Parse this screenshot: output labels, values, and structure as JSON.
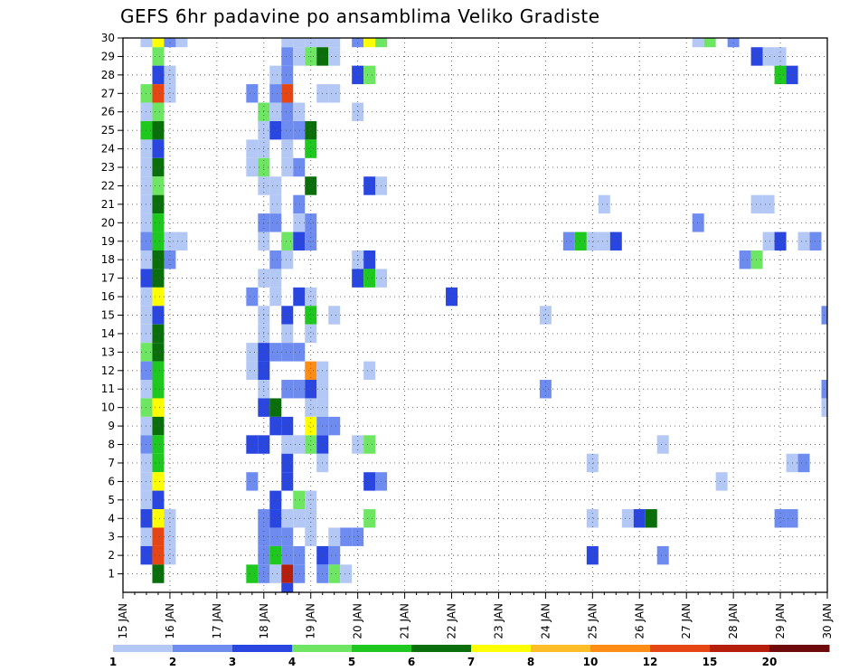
{
  "chart_data": {
    "type": "heatmap",
    "title": "GEFS 6hr padavine po ansamblima Veliko Gradiste",
    "xlabel": "",
    "ylabel": "",
    "x_ticks": [
      "15 JAN",
      "16 JAN",
      "17 JAN",
      "18 JAN",
      "19 JAN",
      "20 JAN",
      "21 JAN",
      "22 JAN",
      "23 JAN",
      "24 JAN",
      "25 JAN",
      "26 JAN",
      "27 JAN",
      "28 JAN",
      "29 JAN",
      "30 JAN"
    ],
    "y_ticks": [
      1,
      2,
      3,
      4,
      5,
      6,
      7,
      8,
      9,
      10,
      11,
      12,
      13,
      14,
      15,
      16,
      17,
      18,
      19,
      20,
      21,
      22,
      23,
      24,
      25,
      26,
      27,
      28,
      29,
      30
    ],
    "x_range": [
      0,
      60
    ],
    "y_range": [
      0,
      30
    ],
    "grid": true,
    "grid_style": "dotted",
    "legend_placement": "bottom",
    "legend": {
      "labels": [
        "1",
        "2",
        "3",
        "4",
        "5",
        "6",
        "7",
        "8",
        "10",
        "12",
        "15",
        "20"
      ],
      "colors": [
        "#b4c8f5",
        "#6e8cf0",
        "#2a46e0",
        "#6ee664",
        "#1ec81e",
        "#0a6e0a",
        "#ffff00",
        "#ffbe28",
        "#ff8c14",
        "#e64614",
        "#b41e0a",
        "#6e0a0a"
      ]
    },
    "cells_note": "each cell: [ensemble_member, 6h_step_index_from_15JAN00Z, level_index]; level_index i -> legend.colors[i]",
    "cells": [
      [
        30,
        2,
        0
      ],
      [
        30,
        3,
        6
      ],
      [
        30,
        4,
        1
      ],
      [
        30,
        5,
        0
      ],
      [
        30,
        14,
        0
      ],
      [
        30,
        15,
        0
      ],
      [
        30,
        16,
        0
      ],
      [
        30,
        17,
        0
      ],
      [
        30,
        18,
        0
      ],
      [
        30,
        20,
        1
      ],
      [
        30,
        21,
        6
      ],
      [
        30,
        22,
        3
      ],
      [
        30,
        49,
        0
      ],
      [
        30,
        50,
        3
      ],
      [
        30,
        52,
        1
      ],
      [
        29,
        3,
        3
      ],
      [
        29,
        14,
        1
      ],
      [
        29,
        15,
        0
      ],
      [
        29,
        16,
        3
      ],
      [
        29,
        17,
        5
      ],
      [
        29,
        18,
        0
      ],
      [
        29,
        54,
        2
      ],
      [
        29,
        55,
        0
      ],
      [
        29,
        56,
        0
      ],
      [
        28,
        3,
        2
      ],
      [
        28,
        4,
        0
      ],
      [
        28,
        13,
        0
      ],
      [
        28,
        14,
        1
      ],
      [
        28,
        20,
        2
      ],
      [
        28,
        21,
        3
      ],
      [
        28,
        56,
        4
      ],
      [
        28,
        57,
        2
      ],
      [
        27,
        2,
        3
      ],
      [
        27,
        3,
        9
      ],
      [
        27,
        4,
        0
      ],
      [
        27,
        11,
        1
      ],
      [
        27,
        13,
        1
      ],
      [
        27,
        14,
        9
      ],
      [
        27,
        17,
        0
      ],
      [
        27,
        18,
        0
      ],
      [
        26,
        2,
        0
      ],
      [
        26,
        3,
        3
      ],
      [
        26,
        12,
        3
      ],
      [
        26,
        13,
        0
      ],
      [
        26,
        14,
        1
      ],
      [
        26,
        15,
        0
      ],
      [
        26,
        20,
        0
      ],
      [
        25,
        2,
        4
      ],
      [
        25,
        3,
        5
      ],
      [
        25,
        12,
        0
      ],
      [
        25,
        13,
        2
      ],
      [
        25,
        14,
        1
      ],
      [
        25,
        15,
        1
      ],
      [
        25,
        16,
        5
      ],
      [
        24,
        2,
        0
      ],
      [
        24,
        3,
        2
      ],
      [
        24,
        11,
        0
      ],
      [
        24,
        12,
        0
      ],
      [
        24,
        14,
        0
      ],
      [
        24,
        16,
        4
      ],
      [
        23,
        2,
        0
      ],
      [
        23,
        3,
        5
      ],
      [
        23,
        11,
        0
      ],
      [
        23,
        12,
        3
      ],
      [
        23,
        14,
        0
      ],
      [
        23,
        15,
        1
      ],
      [
        22,
        2,
        0
      ],
      [
        22,
        3,
        3
      ],
      [
        22,
        12,
        0
      ],
      [
        22,
        13,
        0
      ],
      [
        22,
        16,
        5
      ],
      [
        22,
        21,
        2
      ],
      [
        22,
        22,
        0
      ],
      [
        21,
        2,
        0
      ],
      [
        21,
        3,
        5
      ],
      [
        21,
        13,
        0
      ],
      [
        21,
        15,
        1
      ],
      [
        21,
        41,
        0
      ],
      [
        21,
        54,
        0
      ],
      [
        21,
        55,
        0
      ],
      [
        20,
        2,
        0
      ],
      [
        20,
        3,
        4
      ],
      [
        20,
        12,
        1
      ],
      [
        20,
        13,
        1
      ],
      [
        20,
        15,
        0
      ],
      [
        20,
        16,
        1
      ],
      [
        20,
        49,
        1
      ],
      [
        19,
        2,
        1
      ],
      [
        19,
        3,
        4
      ],
      [
        19,
        4,
        0
      ],
      [
        19,
        5,
        0
      ],
      [
        19,
        12,
        0
      ],
      [
        19,
        14,
        3
      ],
      [
        19,
        15,
        2
      ],
      [
        19,
        16,
        1
      ],
      [
        19,
        38,
        1
      ],
      [
        19,
        39,
        4
      ],
      [
        19,
        40,
        0
      ],
      [
        19,
        41,
        0
      ],
      [
        19,
        42,
        2
      ],
      [
        19,
        55,
        0
      ],
      [
        19,
        56,
        2
      ],
      [
        19,
        58,
        0
      ],
      [
        19,
        59,
        1
      ],
      [
        18,
        2,
        0
      ],
      [
        18,
        3,
        5
      ],
      [
        18,
        4,
        1
      ],
      [
        18,
        13,
        1
      ],
      [
        18,
        14,
        0
      ],
      [
        18,
        20,
        0
      ],
      [
        18,
        21,
        2
      ],
      [
        18,
        53,
        1
      ],
      [
        18,
        54,
        3
      ],
      [
        17,
        2,
        2
      ],
      [
        17,
        3,
        5
      ],
      [
        17,
        12,
        0
      ],
      [
        17,
        13,
        0
      ],
      [
        17,
        20,
        2
      ],
      [
        17,
        21,
        4
      ],
      [
        17,
        22,
        0
      ],
      [
        16,
        2,
        0
      ],
      [
        16,
        3,
        6
      ],
      [
        16,
        11,
        1
      ],
      [
        16,
        13,
        0
      ],
      [
        16,
        15,
        2
      ],
      [
        16,
        16,
        0
      ],
      [
        16,
        28,
        2
      ],
      [
        15,
        2,
        0
      ],
      [
        15,
        3,
        2
      ],
      [
        15,
        12,
        0
      ],
      [
        15,
        14,
        2
      ],
      [
        15,
        16,
        4
      ],
      [
        15,
        18,
        0
      ],
      [
        15,
        36,
        0
      ],
      [
        15,
        60,
        1
      ],
      [
        14,
        2,
        0
      ],
      [
        14,
        3,
        5
      ],
      [
        14,
        12,
        0
      ],
      [
        14,
        14,
        0
      ],
      [
        14,
        16,
        0
      ],
      [
        13,
        2,
        3
      ],
      [
        13,
        3,
        5
      ],
      [
        13,
        11,
        0
      ],
      [
        13,
        12,
        2
      ],
      [
        13,
        13,
        1
      ],
      [
        13,
        14,
        1
      ],
      [
        13,
        15,
        1
      ],
      [
        12,
        2,
        1
      ],
      [
        12,
        3,
        4
      ],
      [
        12,
        11,
        0
      ],
      [
        12,
        12,
        2
      ],
      [
        12,
        16,
        8
      ],
      [
        12,
        17,
        0
      ],
      [
        12,
        21,
        0
      ],
      [
        11,
        2,
        0
      ],
      [
        11,
        3,
        4
      ],
      [
        11,
        12,
        0
      ],
      [
        11,
        14,
        1
      ],
      [
        11,
        15,
        1
      ],
      [
        11,
        16,
        2
      ],
      [
        11,
        17,
        0
      ],
      [
        11,
        36,
        1
      ],
      [
        11,
        60,
        1
      ],
      [
        10,
        2,
        3
      ],
      [
        10,
        3,
        6
      ],
      [
        10,
        12,
        2
      ],
      [
        10,
        13,
        5
      ],
      [
        10,
        16,
        0
      ],
      [
        10,
        17,
        0
      ],
      [
        10,
        60,
        0
      ],
      [
        9,
        2,
        0
      ],
      [
        9,
        3,
        5
      ],
      [
        9,
        13,
        2
      ],
      [
        9,
        14,
        2
      ],
      [
        9,
        16,
        6
      ],
      [
        9,
        17,
        1
      ],
      [
        9,
        18,
        1
      ],
      [
        8,
        2,
        1
      ],
      [
        8,
        3,
        4
      ],
      [
        8,
        11,
        2
      ],
      [
        8,
        12,
        2
      ],
      [
        8,
        14,
        0
      ],
      [
        8,
        15,
        0
      ],
      [
        8,
        16,
        3
      ],
      [
        8,
        17,
        2
      ],
      [
        8,
        20,
        0
      ],
      [
        8,
        21,
        3
      ],
      [
        8,
        46,
        0
      ],
      [
        7,
        2,
        0
      ],
      [
        7,
        3,
        4
      ],
      [
        7,
        14,
        2
      ],
      [
        7,
        17,
        0
      ],
      [
        7,
        40,
        0
      ],
      [
        7,
        57,
        0
      ],
      [
        7,
        58,
        1
      ],
      [
        6,
        2,
        0
      ],
      [
        6,
        3,
        6
      ],
      [
        6,
        11,
        1
      ],
      [
        6,
        14,
        2
      ],
      [
        6,
        21,
        2
      ],
      [
        6,
        22,
        1
      ],
      [
        6,
        51,
        0
      ],
      [
        5,
        2,
        0
      ],
      [
        5,
        3,
        2
      ],
      [
        5,
        13,
        2
      ],
      [
        5,
        15,
        3
      ],
      [
        5,
        16,
        0
      ],
      [
        4,
        2,
        2
      ],
      [
        4,
        3,
        6
      ],
      [
        4,
        4,
        0
      ],
      [
        4,
        12,
        1
      ],
      [
        4,
        13,
        2
      ],
      [
        4,
        14,
        0
      ],
      [
        4,
        15,
        0
      ],
      [
        4,
        16,
        0
      ],
      [
        4,
        21,
        3
      ],
      [
        4,
        40,
        0
      ],
      [
        4,
        43,
        0
      ],
      [
        4,
        44,
        2
      ],
      [
        4,
        45,
        5
      ],
      [
        4,
        56,
        1
      ],
      [
        4,
        57,
        1
      ],
      [
        3,
        2,
        0
      ],
      [
        3,
        3,
        9
      ],
      [
        3,
        4,
        0
      ],
      [
        3,
        12,
        1
      ],
      [
        3,
        13,
        1
      ],
      [
        3,
        14,
        1
      ],
      [
        3,
        16,
        0
      ],
      [
        3,
        18,
        0
      ],
      [
        3,
        19,
        1
      ],
      [
        3,
        20,
        1
      ],
      [
        2,
        2,
        2
      ],
      [
        2,
        3,
        9
      ],
      [
        2,
        4,
        0
      ],
      [
        2,
        12,
        1
      ],
      [
        2,
        13,
        4
      ],
      [
        2,
        14,
        1
      ],
      [
        2,
        15,
        1
      ],
      [
        2,
        17,
        2
      ],
      [
        2,
        18,
        1
      ],
      [
        2,
        40,
        2
      ],
      [
        2,
        46,
        1
      ],
      [
        1,
        3,
        5
      ],
      [
        1,
        11,
        4
      ],
      [
        1,
        12,
        1
      ],
      [
        1,
        13,
        0
      ],
      [
        1,
        14,
        10
      ],
      [
        1,
        15,
        1
      ],
      [
        1,
        17,
        1
      ],
      [
        1,
        18,
        3
      ],
      [
        1,
        19,
        0
      ],
      [
        0,
        14,
        2
      ]
    ]
  }
}
